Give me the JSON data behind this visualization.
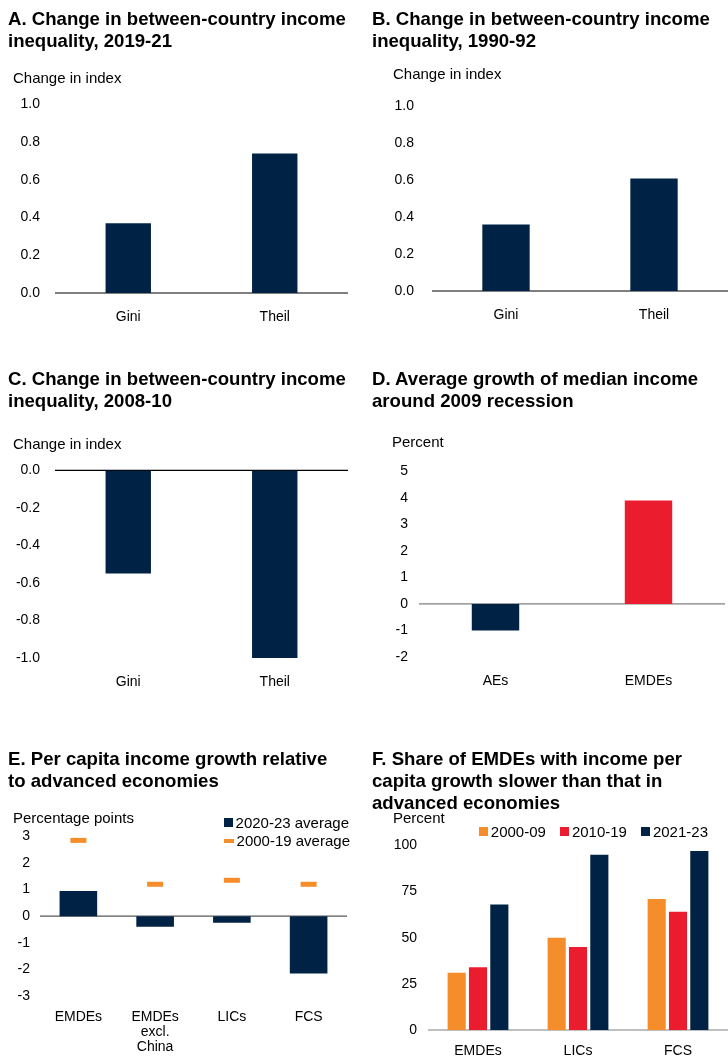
{
  "chart_data": [
    {
      "type": "bar",
      "title": "A. Change in between-country income inequality, 2019-21",
      "ylabel": "Change in index",
      "categories": [
        "Gini",
        "Theil"
      ],
      "values": [
        0.37,
        0.74
      ],
      "color": "#002345",
      "ylim": [
        0,
        1
      ],
      "yticks": [
        {
          "value": 0,
          "label": "0.0"
        },
        0.2,
        0.4,
        0.6,
        0.8,
        {
          "value": 1,
          "label": "1.0"
        }
      ]
    },
    {
      "type": "bar",
      "title": "B. Change in between-country income inequality, 1990-92",
      "ylabel": "Change in index",
      "categories": [
        "Gini",
        "Theil"
      ],
      "values": [
        0.36,
        0.61
      ],
      "color": "#002345",
      "ylim": [
        0,
        1
      ],
      "yticks": [
        {
          "value": 0,
          "label": "0.0"
        },
        0.2,
        0.4,
        0.6,
        0.8,
        {
          "value": 1,
          "label": "1.0"
        }
      ]
    },
    {
      "type": "bar",
      "title": "C. Change in between-country income inequality, 2008-10",
      "ylabel": "Change in index",
      "categories": [
        "Gini",
        "Theil"
      ],
      "values": [
        -0.55,
        -1.0
      ],
      "color": "#002345",
      "ylim": [
        -1,
        0
      ],
      "yticks": [
        {
          "value": -1,
          "label": "-1.0"
        },
        -0.8,
        -0.6,
        -0.4,
        -0.2,
        {
          "value": 0,
          "label": "0.0"
        }
      ]
    },
    {
      "type": "bar",
      "title": "D. Average growth of median income around 2009 recession",
      "ylabel": "Percent",
      "categories": [
        "AEs",
        "EMDEs"
      ],
      "values": [
        -1.0,
        3.9
      ],
      "colors": [
        "#002345",
        "#eb1c2d"
      ],
      "ylim": [
        -2,
        5
      ],
      "yticks": [
        -2,
        -1,
        0,
        1,
        2,
        3,
        4,
        5
      ]
    },
    {
      "type": "bar",
      "title": "E. Per capita income growth relative to advanced economies",
      "ylabel": "Percentage points",
      "categories": [
        "EMDEs",
        "EMDEs excl. China",
        "LICs",
        "FCS"
      ],
      "series": [
        {
          "name": "2020-23 average",
          "type": "bar",
          "color": "#002345",
          "values": [
            0.95,
            -0.4,
            -0.25,
            -2.15
          ]
        },
        {
          "name": "2000-19 average",
          "type": "scatter",
          "marker": "square",
          "color": "#f68d2b",
          "x": [
            "EMDEs",
            "EMDEs excl. China",
            "LICs",
            "FCS"
          ],
          "values": [
            2.85,
            1.2,
            1.35,
            1.2
          ]
        }
      ],
      "ylim": [
        -3,
        3
      ],
      "yticks": [
        -3,
        -2,
        -1,
        0,
        1,
        2,
        3
      ],
      "legend": "top right"
    },
    {
      "type": "bar",
      "title": "F. Share of EMDEs with income per capita growth slower than that in advanced economies",
      "ylabel": "Percent",
      "categories": [
        "EMDEs",
        "LICs",
        "FCS"
      ],
      "series": [
        {
          "name": "2000-09",
          "color": "#f68d2b",
          "values": [
            31,
            50,
            71
          ]
        },
        {
          "name": "2010-19",
          "color": "#eb1c2d",
          "values": [
            34,
            45,
            64
          ]
        },
        {
          "name": "2021-23",
          "color": "#002345",
          "values": [
            68,
            95,
            97
          ]
        }
      ],
      "ylim": [
        0,
        100
      ],
      "yticks": [
        0,
        25,
        50,
        75,
        100
      ],
      "legend": "top"
    }
  ]
}
